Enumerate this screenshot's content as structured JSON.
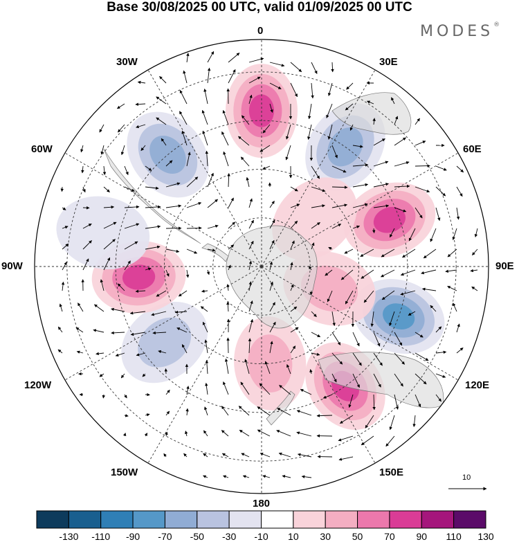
{
  "title": "Base 30/08/2025 00 UTC, valid 01/09/2025 00 UTC",
  "brand": {
    "name": "MODES",
    "mark": "®"
  },
  "map": {
    "projection": "south polar stereographic",
    "field": "anomaly with wind vectors",
    "longitude_labels": {
      "lon_0": "0",
      "lon_30e": "30E",
      "lon_60e": "60E",
      "lon_90e": "90E",
      "lon_120e": "120E",
      "lon_150e": "150E",
      "lon_180": "180",
      "lon_150w": "150W",
      "lon_120w": "120W",
      "lon_90w": "90W",
      "lon_60w": "60W",
      "lon_30w": "30W"
    },
    "reference_vector": "10"
  },
  "colorbar": {
    "labels": [
      "-130",
      "-110",
      "-90",
      "-70",
      "-50",
      "-30",
      "-10",
      "10",
      "30",
      "50",
      "70",
      "90",
      "110",
      "130"
    ],
    "colors": [
      "#0d3b5c",
      "#195f8f",
      "#2f7fb6",
      "#5598c8",
      "#90acd4",
      "#b9c3e0",
      "#e3e3f0",
      "#ffffff",
      "#f9d3da",
      "#f4aec2",
      "#ec78ac",
      "#da3c96",
      "#a5167c",
      "#5b0b69"
    ]
  },
  "anomalies": [
    {
      "name": "anomaly-positive-0",
      "value": 90,
      "lon": 0,
      "lat": -42
    },
    {
      "name": "anomaly-negative-30e",
      "value": -70,
      "lon": 35,
      "lat": -45
    },
    {
      "name": "anomaly-positive-70e",
      "value": 80,
      "lon": 70,
      "lat": -48
    },
    {
      "name": "anomaly-negative-110e",
      "value": -80,
      "lon": 110,
      "lat": -45
    },
    {
      "name": "anomaly-positive-145e",
      "value": 90,
      "lon": 145,
      "lat": -45
    },
    {
      "name": "anomaly-positive-170e",
      "value": 50,
      "lon": 175,
      "lat": -60
    },
    {
      "name": "anomaly-negative-130w",
      "value": -40,
      "lon": -128,
      "lat": -52
    },
    {
      "name": "anomaly-positive-95w",
      "value": 80,
      "lon": -95,
      "lat": -52
    },
    {
      "name": "anomaly-negative-40w",
      "value": -70,
      "lon": -40,
      "lat": -45
    },
    {
      "name": "anomaly-negative-75w",
      "value": -30,
      "lon": -78,
      "lat": -40
    },
    {
      "name": "anomaly-positive-45e",
      "value": 30,
      "lon": 48,
      "lat": -68
    },
    {
      "name": "anomaly-positive-105e",
      "value": 40,
      "lon": 108,
      "lat": -68
    }
  ]
}
